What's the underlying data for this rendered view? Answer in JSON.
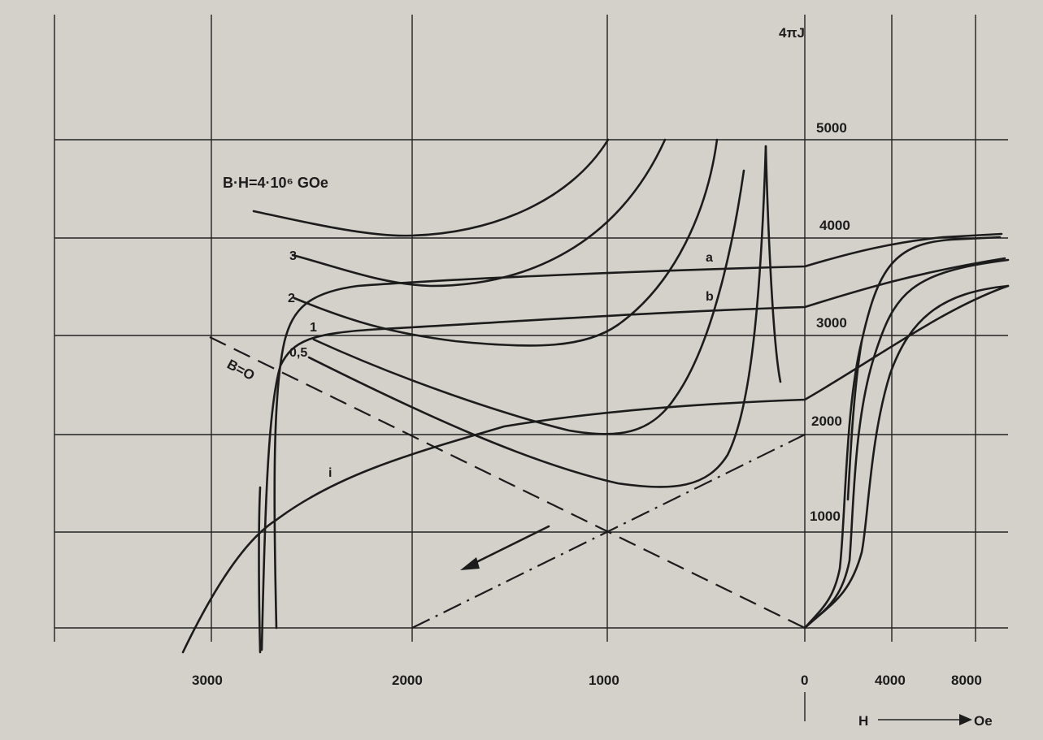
{
  "chart_data": {
    "type": "line",
    "title": "",
    "ylabel": "4πJ",
    "xlabel_symbol": "H",
    "xlabel_unit": "Oe",
    "annotation_bh": "B·H=4·10⁶ GOe",
    "annotation_b0": "B=O",
    "x_ticks_left": [
      "3000",
      "2000",
      "1000",
      "0"
    ],
    "x_ticks_right": [
      "4000",
      "8000"
    ],
    "y_ticks": [
      "1000",
      "2000",
      "3000",
      "4000",
      "5000"
    ],
    "ylim": [
      0,
      5000
    ],
    "grid": true,
    "curve_labels": [
      "3",
      "2",
      "1",
      "0,5",
      "a",
      "b",
      "i"
    ],
    "energy_product_curves": [
      {
        "name": "3",
        "points": [
          [
            1900,
            3950
          ],
          [
            2100,
            3900
          ],
          [
            2400,
            3900
          ],
          [
            2700,
            4200
          ]
        ]
      },
      {
        "name": "2",
        "points": [
          [
            1900,
            3300
          ],
          [
            2200,
            3500
          ],
          [
            2500,
            3500
          ],
          [
            2700,
            3650
          ]
        ]
      },
      {
        "name": "1",
        "points": [
          [
            1800,
            2600
          ],
          [
            2100,
            3000
          ],
          [
            2300,
            3000
          ],
          [
            2500,
            3200
          ]
        ]
      },
      {
        "name": "0,5",
        "points": [
          [
            1150,
            1500
          ],
          [
            1500,
            1500
          ],
          [
            2000,
            2300
          ],
          [
            2500,
            3000
          ]
        ]
      }
    ],
    "demagnetization_curves": [
      {
        "name": "a",
        "H": [
          2700,
          2650,
          2500,
          2200,
          1500,
          1000,
          0
        ],
        "J": [
          0,
          2000,
          3300,
          3450,
          3500,
          3550,
          3700
        ]
      },
      {
        "name": "b",
        "H": [
          2700,
          2600,
          2400,
          2000,
          1000,
          0
        ],
        "J": [
          0,
          2000,
          2850,
          3000,
          3200,
          3300
        ]
      },
      {
        "name": "i",
        "H": [
          3200,
          2700,
          2300,
          2000,
          1000,
          0
        ],
        "J": [
          0,
          1000,
          1700,
          2100,
          2300,
          2450
        ]
      }
    ]
  }
}
